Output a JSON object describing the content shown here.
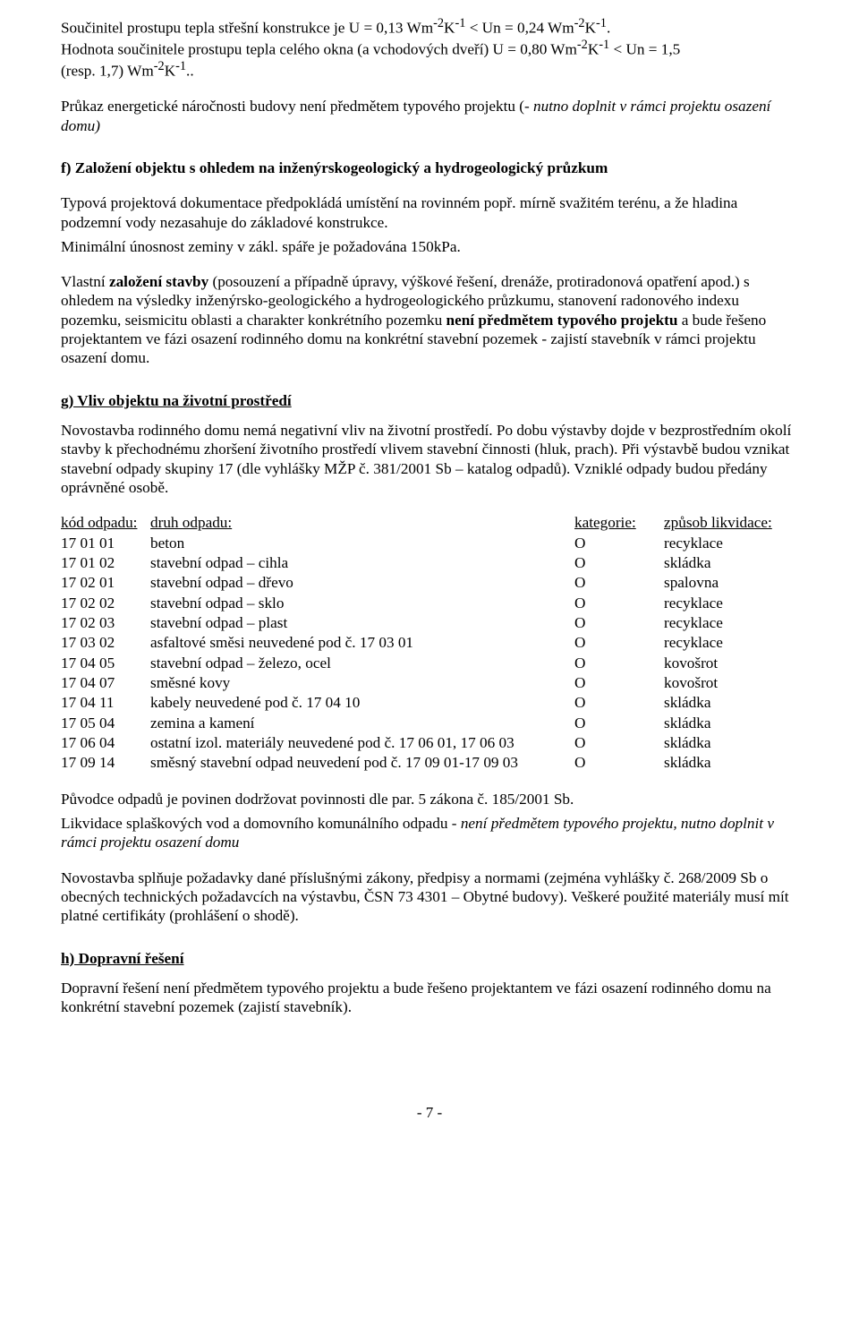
{
  "intro": {
    "p1a": "Součinitel prostupu tepla střešní konstrukce je U = 0,13  Wm",
    "p1b": "K",
    "p1c": "  < Un = 0,24  Wm",
    "p1d": "K",
    "p1e": ".",
    "p2a": "Hodnota součinitele prostupu tepla celého okna (a vchodových dveří) U = 0,80 Wm",
    "p2b": "K",
    "p2c": "  < Un = 1,5",
    "p3a": "(resp. 1,7) Wm",
    "p3b": "K",
    "p3c": ".."
  },
  "prukaz": {
    "text_a": "Průkaz energetické náročnosti budovy není předmětem typového projektu (",
    "text_italic": "- nutno doplnit v rámci projektu osazení domu)",
    "text_b": ""
  },
  "sec_f": {
    "title": "f) Založení objektu s ohledem na inženýrskogeologický a hydrogeologický průzkum",
    "p1": "Typová projektová dokumentace předpokládá umístění na rovinném popř. mírně svažitém terénu, a že hladina podzemní vody nezasahuje do základové konstrukce.",
    "p2": "Minimální únosnost zeminy v zákl. spáře je požadována 150kPa.",
    "p3_a": "Vlastní ",
    "p3_bold": "založení stavby",
    "p3_b": " (posouzení a případně úpravy, výškové řešení, drenáže, protiradonová opatření apod.) s ohledem na výsledky inženýrsko-geologického a hydrogeologického průzkumu, stanovení radonového indexu pozemku, seismicitu oblasti a charakter konkrétního pozemku ",
    "p3_bold2": "není předmětem typového projektu",
    "p3_c": " a bude řešeno projektantem ve fázi osazení rodinného domu na konkrétní stavební pozemek  - zajistí stavebník v rámci projektu osazení domu."
  },
  "sec_g": {
    "title": "g) Vliv objektu na životní prostředí",
    "p1": "Novostavba rodinného domu nemá negativní vliv na životní prostředí. Po dobu výstavby dojde v bezprostředním okolí stavby k přechodnému zhoršení životního prostředí vlivem stavební činnosti (hluk, prach). Při výstavbě budou vznikat stavební odpady skupiny 17 (dle vyhlášky MŽP č. 381/2001 Sb – katalog odpadů). Vzniklé odpady budou předány oprávněné osobě.",
    "header": {
      "c1": "kód odpadu:",
      "c2": "druh odpadu:",
      "c3": "kategorie:",
      "c4": "způsob likvidace:"
    },
    "rows": [
      {
        "c1": "17 01 01",
        "c2": "beton",
        "c3": "O",
        "c4": "recyklace"
      },
      {
        "c1": "17 01 02",
        "c2": "stavební odpad – cihla",
        "c3": "O",
        "c4": "skládka"
      },
      {
        "c1": "17 02 01",
        "c2": "stavební odpad – dřevo",
        "c3": "O",
        "c4": "spalovna"
      },
      {
        "c1": "17 02 02",
        "c2": "stavební odpad – sklo",
        "c3": "O",
        "c4": "recyklace"
      },
      {
        "c1": "17 02 03",
        "c2": "stavební odpad – plast",
        "c3": "O",
        "c4": "recyklace"
      },
      {
        "c1": "17 03 02",
        "c2": "asfaltové směsi neuvedené pod č. 17 03 01",
        "c3": "O",
        "c4": "recyklace"
      },
      {
        "c1": "17 04 05",
        "c2": "stavební odpad – železo, ocel",
        "c3": "O",
        "c4": "kovošrot"
      },
      {
        "c1": "17 04 07",
        "c2": "směsné kovy",
        "c3": "O",
        "c4": "kovošrot"
      },
      {
        "c1": "17 04 11",
        "c2": "kabely neuvedené pod č. 17 04 10",
        "c3": "O",
        "c4": "skládka"
      },
      {
        "c1": "17 05 04",
        "c2": "zemina a kamení",
        "c3": "O",
        "c4": "skládka"
      },
      {
        "c1": "17 06 04",
        "c2": "ostatní izol. materiály neuvedené pod č. 17 06 01, 17 06 03",
        "c3": "O",
        "c4": "skládka"
      },
      {
        "c1": "17 09 14",
        "c2": "směsný stavební odpad neuvedení pod č. 17 09 01-17 09 03",
        "c3": "O",
        "c4": "skládka"
      }
    ],
    "p2": "Původce odpadů je povinen dodržovat povinnosti dle par. 5 zákona č. 185/2001 Sb.",
    "p3_a": "Likvidace splaškových vod a domovního komunálního odpadu - ",
    "p3_it": "není předmětem typového projektu, nutno doplnit v rámci projektu osazení domu",
    "p4": "Novostavba splňuje požadavky dané příslušnými zákony, předpisy a normami (zejména vyhlášky č. 268/2009 Sb o obecných technických požadavcích na výstavbu, ČSN 73 4301 – Obytné budovy). Veškeré použité materiály musí mít platné certifikáty (prohlášení o shodě)."
  },
  "sec_h": {
    "title": "h) Dopravní řešení",
    "p1": "Dopravní řešení není předmětem typového projektu a bude řešeno projektantem ve fázi osazení rodinného domu na konkrétní stavební pozemek (zajistí stavebník)."
  },
  "footer": "- 7 -"
}
